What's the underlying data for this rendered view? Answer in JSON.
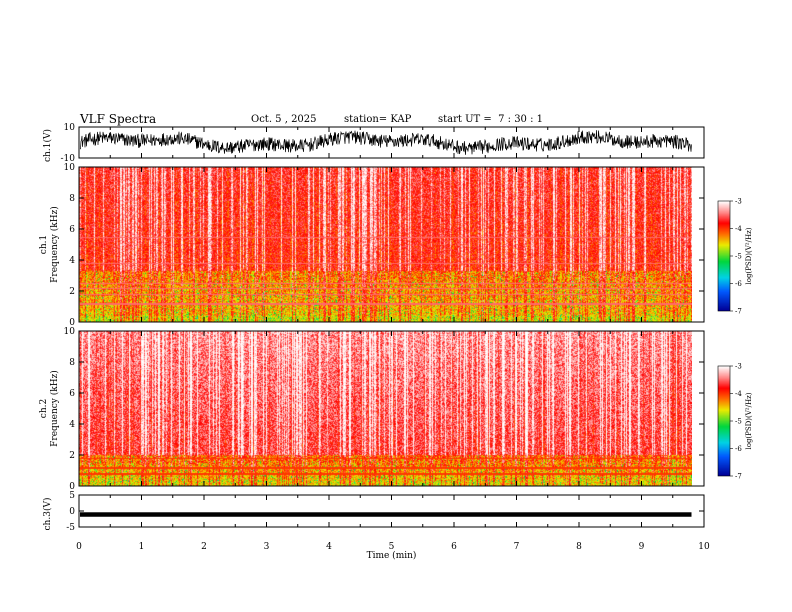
{
  "header": {
    "title": "VLF Spectra",
    "date": "Oct. 5 , 2025",
    "station": "station= KAP",
    "start": "start UT =  7 : 30 : 1"
  },
  "chart_data": [
    {
      "type": "line",
      "panel": "ch1_waveform",
      "ylabel": "ch.1(V)",
      "ylim": [
        -10,
        10
      ],
      "yticks": [
        10,
        -10
      ],
      "xlim": [
        0,
        10
      ],
      "description_of_trace": "noisy black waveform mostly between -4 and 5 V, recorded to ~9.8 min"
    },
    {
      "type": "heatmap",
      "panel": "ch1_spectrogram",
      "ylabel_top": "ch.1",
      "ylabel": "Frequency (kHz)",
      "ylim": [
        0,
        10
      ],
      "yticks": [
        0,
        2,
        4,
        6,
        8,
        10
      ],
      "xlim": [
        0,
        10
      ],
      "data_end_min": 9.8,
      "colorbar": {
        "label": "log(PSD)(V²/Hz)",
        "range": [
          -7,
          -3
        ],
        "ticks": [
          -3,
          -4,
          -5,
          -6,
          -7
        ]
      },
      "dominant_level": "about -4 (red) across band, -4.5 to -5 (yellow/green) below ~3 kHz"
    },
    {
      "type": "heatmap",
      "panel": "ch2_spectrogram",
      "ylabel_top": "ch.2",
      "ylabel": "Frequency (kHz)",
      "ylim": [
        0,
        10
      ],
      "yticks": [
        0,
        2,
        4,
        6,
        8,
        10
      ],
      "xlim": [
        0,
        10
      ],
      "data_end_min": 9.8,
      "colorbar": {
        "label": "log(PSD)(V²/Hz)",
        "range": [
          -7,
          -3
        ],
        "ticks": [
          -3,
          -4,
          -5,
          -6,
          -7
        ]
      },
      "dominant_level": "about -3.5 (light red) above 2 kHz, -4 to -5 (yellow/green) below ~2 kHz"
    },
    {
      "type": "line",
      "panel": "ch3_waveform",
      "ylabel": "ch.3(V)",
      "ylim": [
        -5,
        5
      ],
      "yticks": [
        5,
        0,
        -5
      ],
      "xlim": [
        0,
        10
      ],
      "xlabel": "Time (min)",
      "xticks": [
        0,
        1,
        2,
        3,
        4,
        5,
        6,
        7,
        8,
        9,
        10
      ],
      "description_of_trace": "thick flat black band near -1 V to ~9.8 min"
    }
  ]
}
